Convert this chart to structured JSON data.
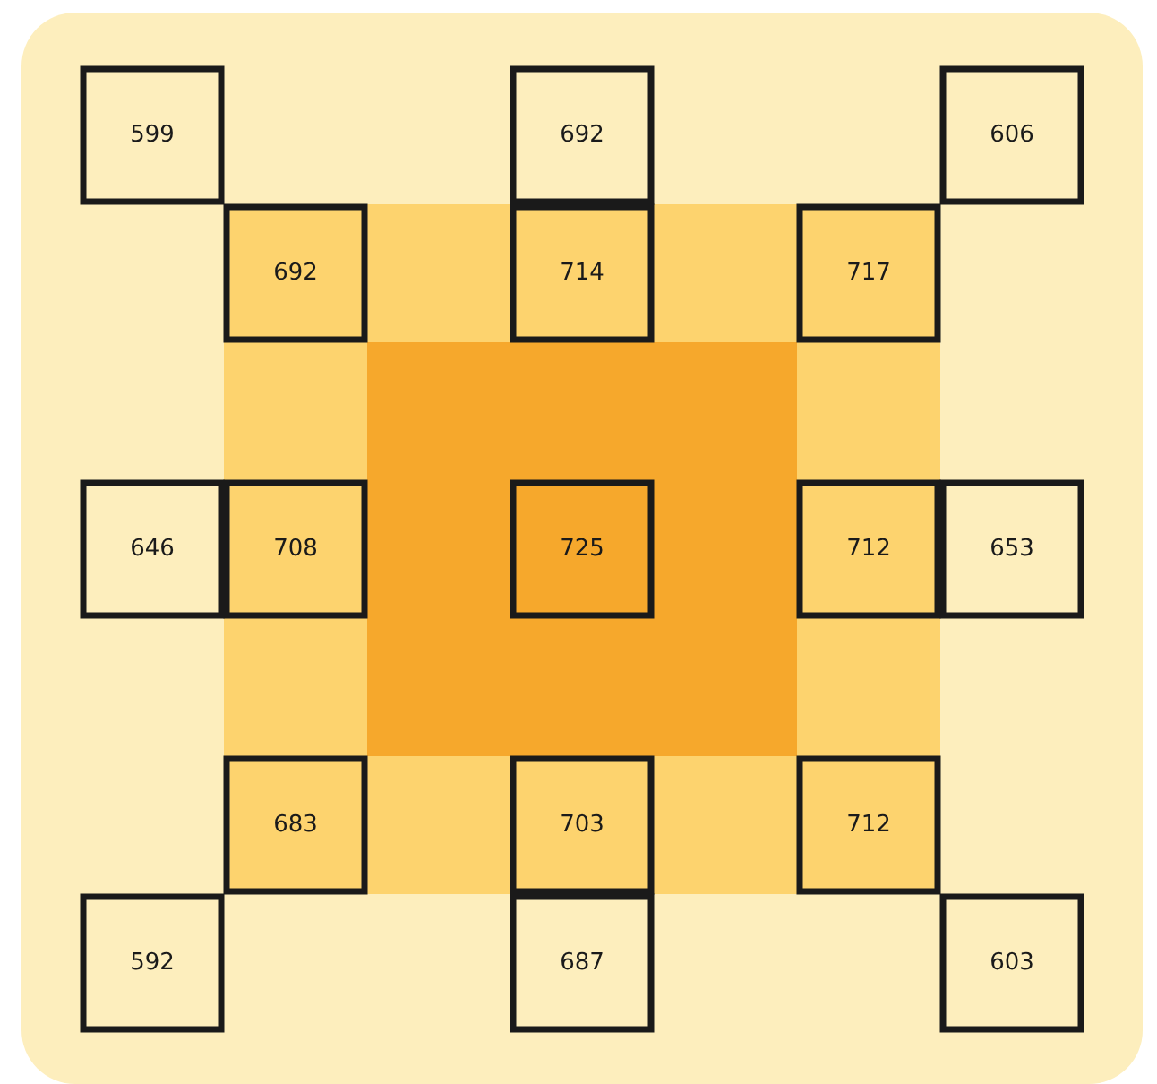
{
  "chart_data": {
    "type": "other",
    "values": [
      599,
      692,
      606,
      692,
      714,
      717,
      646,
      708,
      725,
      712,
      653,
      683,
      703,
      712,
      592,
      687,
      603
    ],
    "colors": [
      "#fdeebd",
      "#fdeebd",
      "#fdeebd",
      "#fdd36e",
      "#fdd36e",
      "#fdd36e",
      "#fdeebd",
      "#fdd36e",
      "#f6a82c",
      "#fdd36e",
      "#fdeebd",
      "#fdd36e",
      "#fdd36e",
      "#fdd36e",
      "#fdeebd",
      "#fdeebd",
      "#fdeebd"
    ],
    "data_labels": true
  }
}
